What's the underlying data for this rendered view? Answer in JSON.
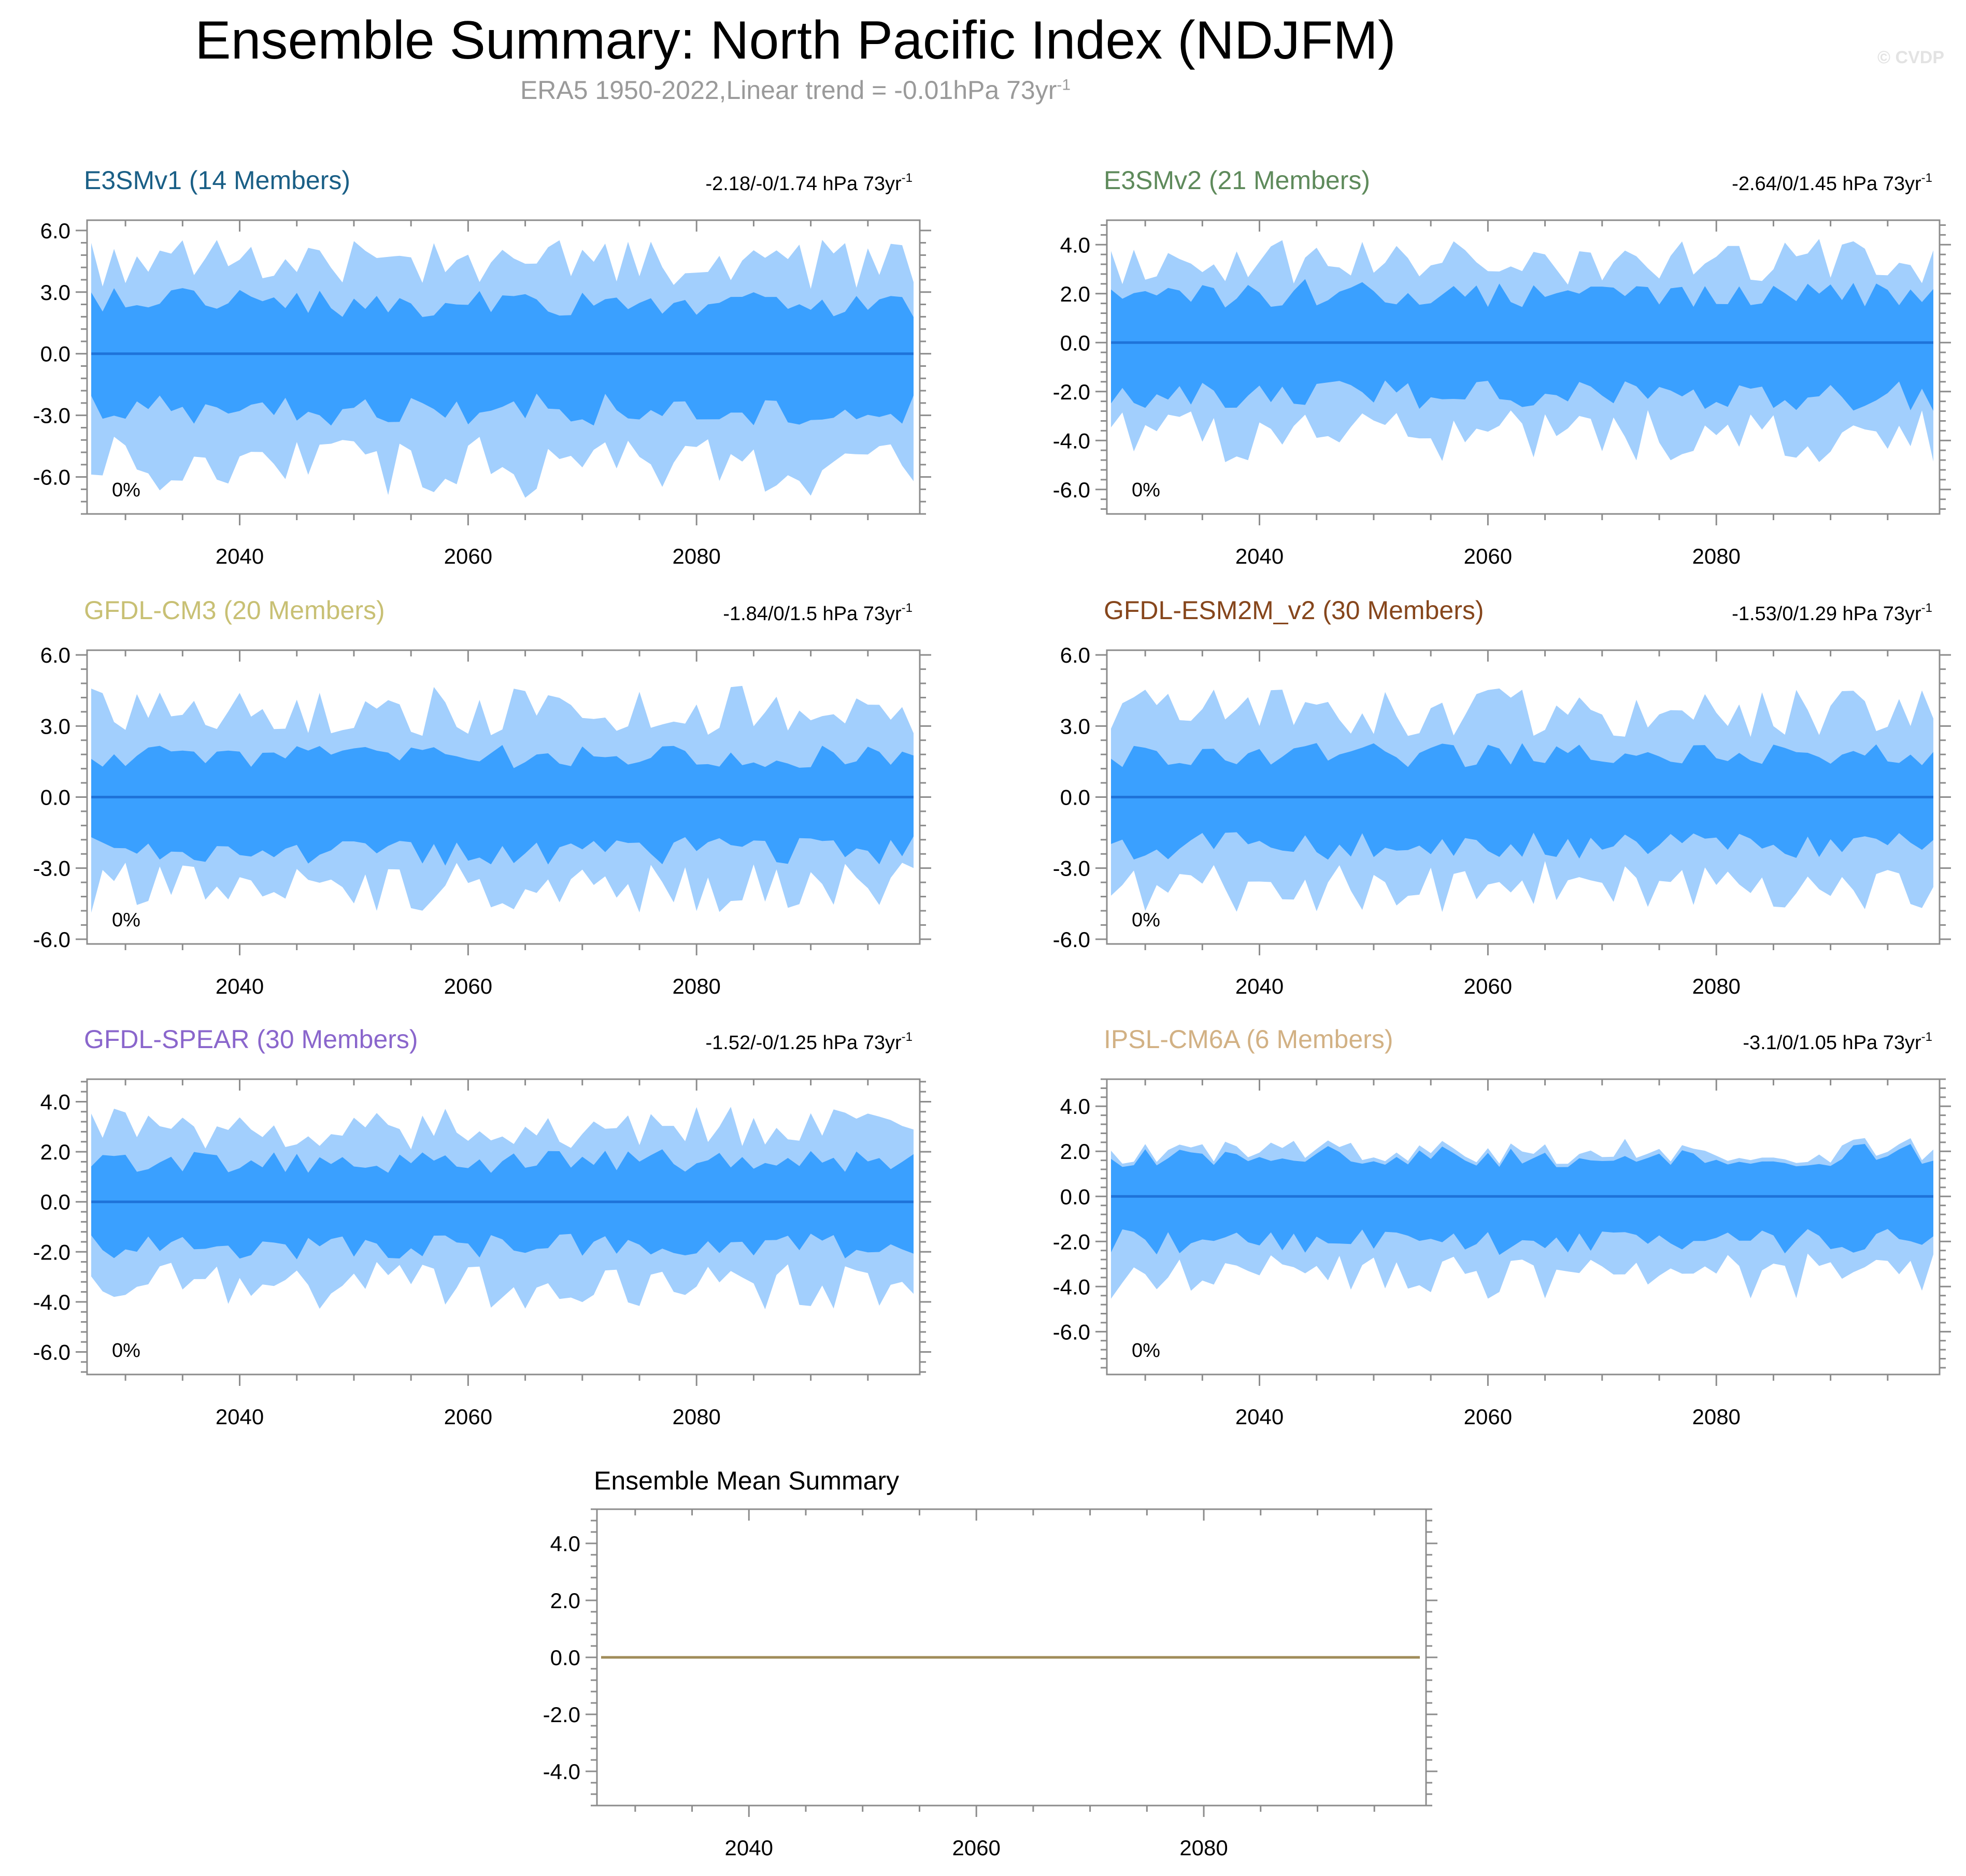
{
  "header": {
    "title": "Ensemble Summary: North Pacific Index (NDJFM)",
    "subtitle_main": "ERA5 1950-2022,Linear trend = -0.01hPa 73yr",
    "subtitle_sup": "-1",
    "watermark": "© CVDP"
  },
  "colors": {
    "outer_band": "#a2cffd",
    "inner_band": "#3aa0ff",
    "mean_line": "#1e73d9",
    "summary_line": "#a08c5a",
    "frame": "#8c8c8c"
  },
  "chart_data": [
    {
      "type": "area",
      "model": "E3SMv1",
      "members": "14 Members",
      "title": "E3SMv1 (14 Members)",
      "title_color": "#1a5f86",
      "trend_text": "-2.18/-0/1.74 hPa 73yr",
      "trend_sup": "-1",
      "pct_label": "0%",
      "x_range": [
        2027,
        2099
      ],
      "x_ticks": [
        2040,
        2060,
        2080
      ],
      "ylim": [
        -7.8,
        6.5
      ],
      "y_ticks": [
        6.0,
        3.0,
        0.0,
        -3.0,
        -6.0
      ],
      "y_tick_labels": [
        "6.0",
        "3.0",
        "0.0",
        "-3.0",
        "-6.0"
      ],
      "mean": 0.0,
      "outer_max": 5.6,
      "outer_min": -7.1,
      "inner_max": 3.2,
      "inner_min": -3.5,
      "seed": 11
    },
    {
      "type": "area",
      "model": "E3SMv2",
      "members": "21 Members",
      "title": "E3SMv2 (21 Members)",
      "title_color": "#5e8a5b",
      "trend_text": "-2.64/0/1.45 hPa 73yr",
      "trend_sup": "-1",
      "pct_label": "0%",
      "x_range": [
        2027,
        2099
      ],
      "x_ticks": [
        2040,
        2060,
        2080
      ],
      "ylim": [
        -7.0,
        5.0
      ],
      "y_ticks": [
        4.0,
        2.0,
        0.0,
        -2.0,
        -4.0,
        -6.0
      ],
      "y_tick_labels": [
        "4.0",
        "2.0",
        "0.0",
        "-2.0",
        "-4.0",
        "-6.0"
      ],
      "mean": 0.0,
      "outer_max": 4.3,
      "outer_min": -5.0,
      "inner_max": 2.6,
      "inner_min": -2.8,
      "seed": 23
    },
    {
      "type": "area",
      "model": "GFDL-CM3",
      "members": "20 Members",
      "title": "GFDL-CM3 (20 Members)",
      "title_color": "#c8c074",
      "trend_text": "-1.84/0/1.5 hPa 73yr",
      "trend_sup": "-1",
      "pct_label": "0%",
      "x_range": [
        2027,
        2099
      ],
      "x_ticks": [
        2040,
        2060,
        2080
      ],
      "ylim": [
        -6.2,
        6.2
      ],
      "y_ticks": [
        6.0,
        3.0,
        0.0,
        -3.0,
        -6.0
      ],
      "y_tick_labels": [
        "6.0",
        "3.0",
        "0.0",
        "-3.0",
        "-6.0"
      ],
      "mean": 0.0,
      "outer_max": 4.7,
      "outer_min": -4.9,
      "inner_max": 2.2,
      "inner_min": -2.9,
      "seed": 37
    },
    {
      "type": "area",
      "model": "GFDL-ESM2M_v2",
      "members": "30 Members",
      "title": "GFDL-ESM2M_v2 (30 Members)",
      "title_color": "#86461c",
      "trend_text": "-1.53/0/1.29 hPa 73yr",
      "trend_sup": "-1",
      "pct_label": "0%",
      "x_range": [
        2027,
        2099
      ],
      "x_ticks": [
        2040,
        2060,
        2080
      ],
      "ylim": [
        -6.2,
        6.2
      ],
      "y_ticks": [
        6.0,
        3.0,
        0.0,
        -3.0,
        -6.0
      ],
      "y_tick_labels": [
        "6.0",
        "3.0",
        "0.0",
        "-3.0",
        "-6.0"
      ],
      "mean": 0.0,
      "outer_max": 4.6,
      "outer_min": -4.9,
      "inner_max": 2.3,
      "inner_min": -2.7,
      "seed": 51
    },
    {
      "type": "area",
      "model": "GFDL-SPEAR",
      "members": "30 Members",
      "title": "GFDL-SPEAR (30 Members)",
      "title_color": "#8a66cc",
      "trend_text": "-1.52/-0/1.25 hPa 73yr",
      "trend_sup": "-1",
      "pct_label": "0%",
      "x_range": [
        2027,
        2099
      ],
      "x_ticks": [
        2040,
        2060,
        2080
      ],
      "ylim": [
        -6.9,
        4.9
      ],
      "y_ticks": [
        4.0,
        2.0,
        0.0,
        -2.0,
        -4.0,
        -6.0
      ],
      "y_tick_labels": [
        "4.0",
        "2.0",
        "0.0",
        "-2.0",
        "-4.0",
        "-6.0"
      ],
      "mean": 0.0,
      "outer_max": 3.8,
      "outer_min": -4.3,
      "inner_max": 2.1,
      "inner_min": -2.3,
      "seed": 67
    },
    {
      "type": "area",
      "model": "IPSL-CM6A",
      "members": "6 Members",
      "title": "IPSL-CM6A (6 Members)",
      "title_color": "#d2b184",
      "trend_text": "-3.1/0/1.05 hPa 73yr",
      "trend_sup": "-1",
      "pct_label": "0%",
      "x_range": [
        2027,
        2099
      ],
      "x_ticks": [
        2040,
        2060,
        2080
      ],
      "ylim": [
        -7.9,
        5.2
      ],
      "y_ticks": [
        4.0,
        2.0,
        0.0,
        -2.0,
        -4.0,
        -6.0
      ],
      "y_tick_labels": [
        "4.0",
        "2.0",
        "0.0",
        "-2.0",
        "-4.0",
        "-6.0"
      ],
      "mean": 0.0,
      "outer_max": 2.6,
      "outer_min": -4.6,
      "inner_max": 2.6,
      "inner_min": -2.6,
      "seed": 83
    },
    {
      "type": "line",
      "model": "Ensemble Mean Summary",
      "title": "Ensemble Mean Summary",
      "title_color": "#000000",
      "x_range": [
        2027,
        2099
      ],
      "x_ticks": [
        2040,
        2060,
        2080
      ],
      "ylim": [
        -5.2,
        5.2
      ],
      "y_ticks": [
        4.0,
        2.0,
        0.0,
        -2.0,
        -4.0
      ],
      "y_tick_labels": [
        "4.0",
        "2.0",
        "0.0",
        "-2.0",
        "-4.0"
      ],
      "series": [
        {
          "name": "ensemble mean",
          "x": [
            2027,
            2099
          ],
          "values": [
            0.0,
            0.0
          ]
        }
      ]
    }
  ]
}
